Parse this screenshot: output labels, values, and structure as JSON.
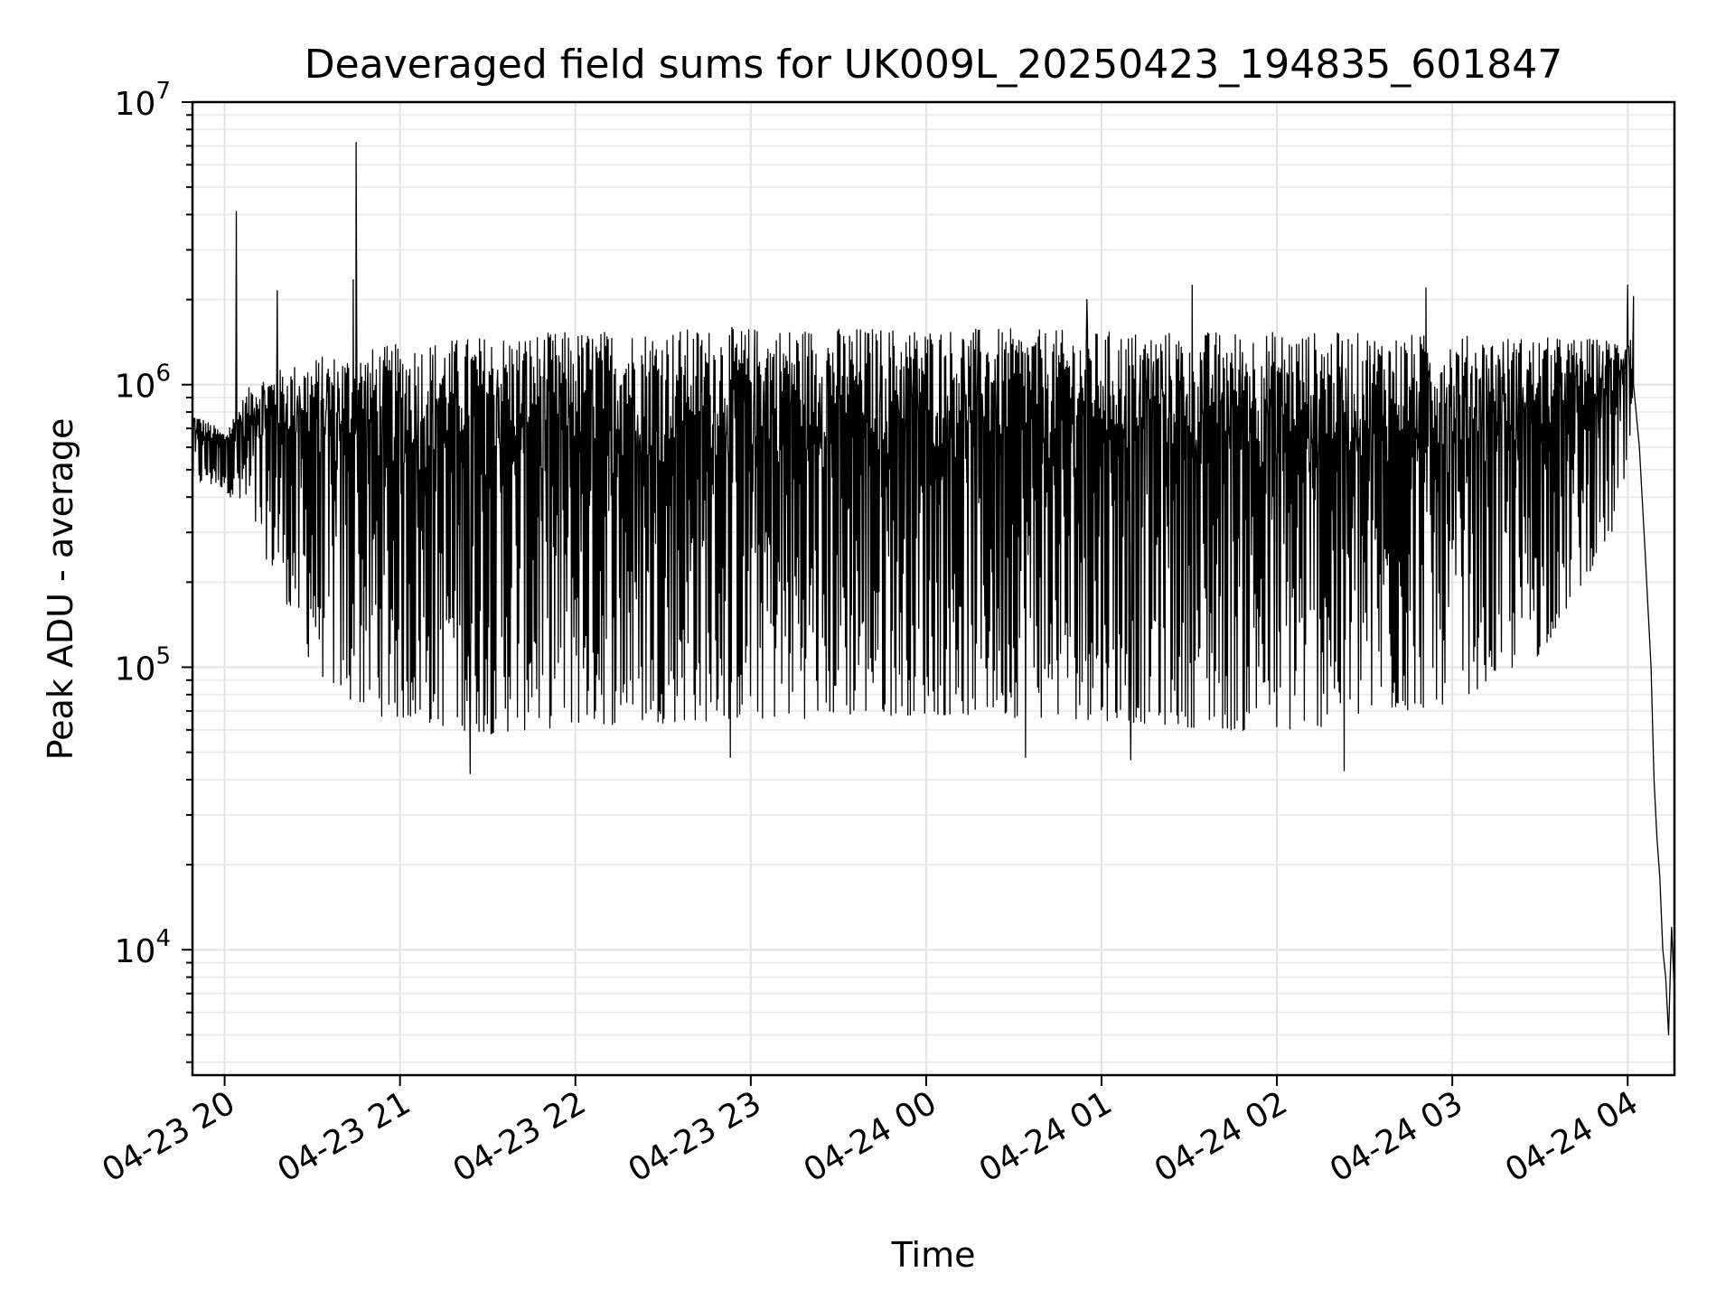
{
  "chart_data": {
    "type": "line",
    "title": "Deaveraged field sums for UK009L_20250423_194835_601847",
    "xlabel": "Time",
    "ylabel": "Peak ADU - average",
    "yscale": "log",
    "ylim": [
      3600,
      10000000
    ],
    "xlim": [
      "2025-04-23T19:49",
      "2025-04-24T04:16"
    ],
    "grid": true,
    "x_ticks": [
      "04-23 20",
      "04-23 21",
      "04-23 22",
      "04-23 23",
      "04-24 00",
      "04-24 01",
      "04-24 02",
      "04-24 03",
      "04-24 04"
    ],
    "x_tick_times": [
      "2025-04-23T20:00",
      "2025-04-23T21:00",
      "2025-04-23T22:00",
      "2025-04-23T23:00",
      "2025-04-24T00:00",
      "2025-04-24T01:00",
      "2025-04-24T02:00",
      "2025-04-24T03:00",
      "2025-04-24T04:00"
    ],
    "y_ticks": [
      {
        "value": 10000,
        "base": "10",
        "exp": "4"
      },
      {
        "value": 100000,
        "base": "10",
        "exp": "5"
      },
      {
        "value": 1000000,
        "base": "10",
        "exp": "6"
      },
      {
        "value": 10000000,
        "base": "10",
        "exp": "7"
      }
    ],
    "series": [
      {
        "color": "#000000",
        "band_upper": [
          [
            "2025-04-23T19:49",
            800000
          ],
          [
            "2025-04-23T20:00",
            680000
          ],
          [
            "2025-04-23T20:10",
            1050000
          ],
          [
            "2025-04-23T20:30",
            1250000
          ],
          [
            "2025-04-23T21:00",
            1400000
          ],
          [
            "2025-04-23T21:30",
            1500000
          ],
          [
            "2025-04-23T22:00",
            1550000
          ],
          [
            "2025-04-23T23:00",
            1600000
          ],
          [
            "2025-04-24T00:00",
            1600000
          ],
          [
            "2025-04-24T01:00",
            1550000
          ],
          [
            "2025-04-24T02:00",
            1550000
          ],
          [
            "2025-04-24T03:00",
            1500000
          ],
          [
            "2025-04-24T03:55",
            1450000
          ],
          [
            "2025-04-24T04:02",
            1600000
          ]
        ],
        "band_lower": [
          [
            "2025-04-23T19:49",
            440000
          ],
          [
            "2025-04-23T20:00",
            430000
          ],
          [
            "2025-04-23T20:10",
            300000
          ],
          [
            "2025-04-23T20:20",
            180000
          ],
          [
            "2025-04-23T20:30",
            100000
          ],
          [
            "2025-04-23T20:45",
            70000
          ],
          [
            "2025-04-23T21:00",
            65000
          ],
          [
            "2025-04-23T21:30",
            58000
          ],
          [
            "2025-04-23T22:00",
            62000
          ],
          [
            "2025-04-23T23:00",
            65000
          ],
          [
            "2025-04-24T00:00",
            68000
          ],
          [
            "2025-04-24T01:00",
            65000
          ],
          [
            "2025-04-24T02:00",
            58000
          ],
          [
            "2025-04-24T02:30",
            65000
          ],
          [
            "2025-04-24T03:00",
            75000
          ],
          [
            "2025-04-24T03:30",
            110000
          ],
          [
            "2025-04-24T03:55",
            300000
          ],
          [
            "2025-04-24T04:02",
            500000
          ]
        ],
        "peaks": [
          [
            "2025-04-23T20:04",
            4100000
          ],
          [
            "2025-04-23T20:18",
            2150000
          ],
          [
            "2025-04-23T20:45",
            7200000
          ],
          [
            "2025-04-23T20:44",
            2350000
          ],
          [
            "2025-04-24T00:55",
            2000000
          ],
          [
            "2025-04-24T01:31",
            2250000
          ],
          [
            "2025-04-24T02:51",
            2200000
          ],
          [
            "2025-04-24T04:00",
            2250000
          ],
          [
            "2025-04-24T04:02",
            2050000
          ]
        ],
        "troughs": [
          [
            "2025-04-23T21:24",
            42000
          ],
          [
            "2025-04-23T22:53",
            48000
          ],
          [
            "2025-04-24T00:34",
            48000
          ],
          [
            "2025-04-24T02:23",
            43000
          ],
          [
            "2025-04-24T01:10",
            47000
          ]
        ],
        "tail": [
          [
            "2025-04-24T04:02",
            1000000
          ],
          [
            "2025-04-24T04:04",
            600000
          ],
          [
            "2025-04-24T04:06",
            250000
          ],
          [
            "2025-04-24T04:08",
            100000
          ],
          [
            "2025-04-24T04:09",
            40000
          ],
          [
            "2025-04-24T04:10",
            25000
          ],
          [
            "2025-04-24T04:11",
            18000
          ],
          [
            "2025-04-24T04:12",
            10000
          ],
          [
            "2025-04-24T04:13",
            8000
          ],
          [
            "2025-04-24T04:14",
            5000
          ],
          [
            "2025-04-24T04:15",
            12000
          ],
          [
            "2025-04-24T04:16",
            7000
          ]
        ]
      }
    ]
  }
}
